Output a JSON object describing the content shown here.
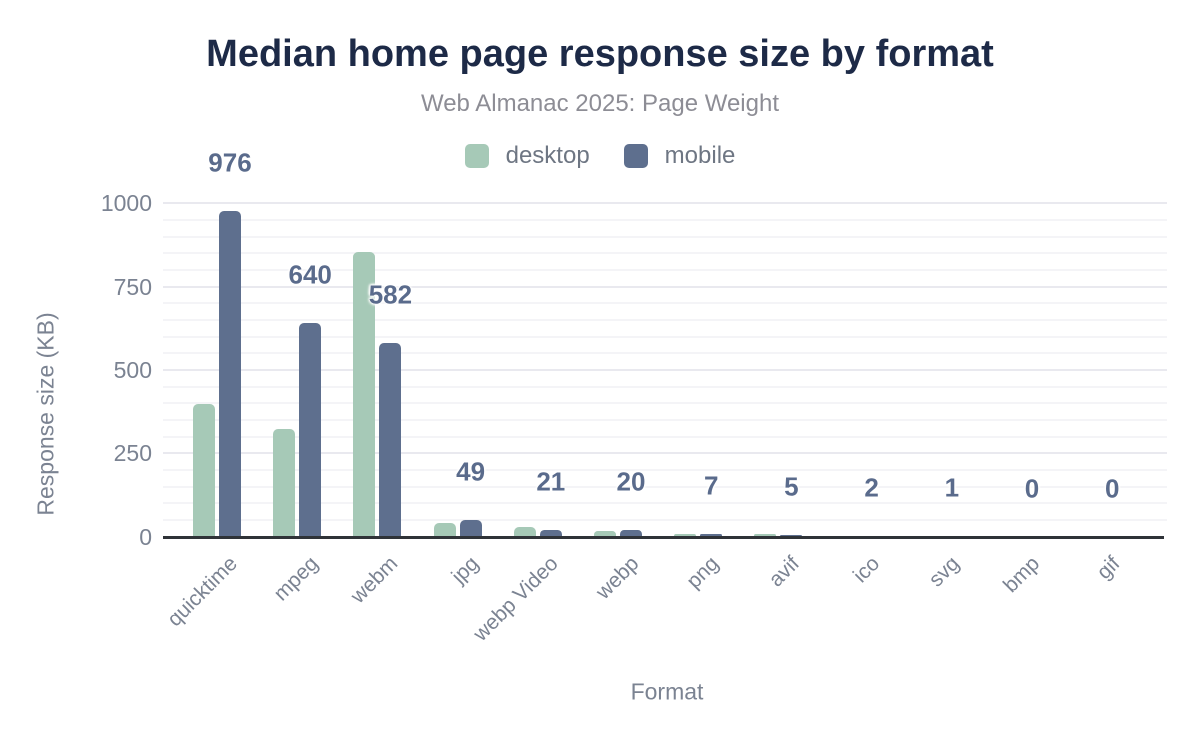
{
  "title": "Median home page response size by format",
  "subtitle": "Web Almanac 2025: Page Weight",
  "legend": {
    "items": [
      {
        "label": "desktop",
        "color": "#a6c9b7"
      },
      {
        "label": "mobile",
        "color": "#5e6f8e"
      }
    ]
  },
  "colors": {
    "background": "#ffffff",
    "title_text": "#1d2a47",
    "subtitle_text": "#8d8d95",
    "legend_text": "#6e7683",
    "axis_text": "#7b8392",
    "data_label_text": "#5a6b8c",
    "axis_line": "#2f3338",
    "grid_minor": "#f4f4f7",
    "grid_major": "#e9e9ef",
    "desktop_bar": "#a6c9b7",
    "mobile_bar": "#5e6f8e"
  },
  "chart_data": {
    "type": "bar",
    "title": "Median home page response size by format",
    "subtitle": "Web Almanac 2025: Page Weight",
    "categories": [
      "quicktime",
      "mpeg",
      "webm",
      "jpg",
      "webp Video",
      "webp",
      "png",
      "avif",
      "ico",
      "svg",
      "bmp",
      "gif"
    ],
    "series": [
      {
        "name": "desktop",
        "color": "#a6c9b7",
        "values": [
          397,
          322,
          855,
          41,
          30,
          18,
          9,
          8,
          2,
          1,
          0,
          0
        ]
      },
      {
        "name": "mobile",
        "color": "#5e6f8e",
        "values": [
          976,
          640,
          582,
          49,
          21,
          20,
          7,
          5,
          2,
          1,
          0,
          0
        ]
      }
    ],
    "data_labels": {
      "series": "mobile",
      "values": [
        976,
        640,
        582,
        49,
        21,
        20,
        7,
        5,
        2,
        1,
        0,
        0
      ]
    },
    "xlabel": "Format",
    "ylabel": "Response size (KB)",
    "ylim": [
      0,
      1000
    ],
    "yticks": [
      0,
      250,
      500,
      750,
      1000
    ],
    "grid": {
      "horizontal": true,
      "minor_step": 50,
      "major_step": 250,
      "vertical": false
    },
    "legend_position": "top-center",
    "bar_labels_shown_for": "mobile series only",
    "note_desktop_values_estimated": "desktop bars unlabeled; values read from axis"
  }
}
